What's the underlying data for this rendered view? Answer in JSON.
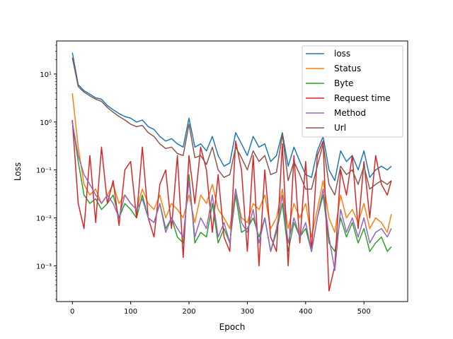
{
  "chart_data": {
    "type": "line",
    "title": "",
    "xlabel": "Epoch",
    "ylabel": "Loss",
    "xscale": "linear",
    "yscale": "log",
    "xlim": [
      -27,
      575
    ],
    "ylim": [
      0.00018,
      49
    ],
    "xticks": [
      0,
      100,
      200,
      300,
      400,
      500
    ],
    "xtick_labels": [
      "0",
      "100",
      "200",
      "300",
      "400",
      "500"
    ],
    "yticks": [
      0.001,
      0.01,
      0.1,
      1,
      10
    ],
    "ytick_labels": [
      "10⁻³",
      "10⁻²",
      "10⁻¹",
      "10⁰",
      "10¹"
    ],
    "grid": false,
    "legend_position": "upper right",
    "x": [
      0,
      10,
      20,
      30,
      40,
      50,
      60,
      70,
      80,
      90,
      100,
      110,
      120,
      130,
      140,
      150,
      160,
      170,
      180,
      190,
      200,
      210,
      220,
      230,
      240,
      250,
      260,
      270,
      280,
      290,
      300,
      310,
      320,
      330,
      340,
      350,
      360,
      370,
      380,
      390,
      400,
      410,
      420,
      430,
      440,
      450,
      460,
      470,
      480,
      490,
      500,
      510,
      520,
      530,
      540,
      547
    ],
    "series": [
      {
        "name": "loss",
        "color": "#1f77b4",
        "values": [
          28,
          6,
          4.5,
          3.8,
          3.2,
          3.0,
          2.2,
          1.8,
          1.5,
          1.3,
          1.2,
          1.0,
          1.1,
          0.8,
          0.7,
          0.5,
          0.4,
          0.45,
          0.35,
          0.3,
          1.2,
          0.3,
          0.35,
          0.25,
          0.5,
          0.2,
          0.12,
          0.14,
          0.6,
          0.35,
          0.2,
          0.5,
          0.3,
          0.35,
          0.15,
          0.2,
          0.6,
          0.12,
          0.3,
          0.15,
          0.08,
          0.07,
          0.25,
          0.5,
          0.1,
          0.06,
          0.25,
          0.15,
          0.2,
          0.1,
          0.25,
          0.07,
          0.1,
          0.12,
          0.1,
          0.12
        ]
      },
      {
        "name": "Status",
        "color": "#ff7f0e",
        "values": [
          4,
          0.3,
          0.05,
          0.03,
          0.04,
          0.02,
          0.03,
          0.05,
          0.02,
          0.03,
          0.02,
          0.015,
          0.04,
          0.02,
          0.015,
          0.03,
          0.01,
          0.02,
          0.015,
          0.01,
          0.03,
          0.008,
          0.03,
          0.02,
          0.05,
          0.015,
          0.01,
          0.006,
          0.04,
          0.01,
          0.008,
          0.02,
          0.015,
          0.03,
          0.006,
          0.01,
          0.04,
          0.006,
          0.02,
          0.01,
          0.02,
          0.004,
          0.015,
          0.06,
          0.01,
          0.005,
          0.03,
          0.01,
          0.015,
          0.008,
          0.02,
          0.006,
          0.01,
          0.008,
          0.005,
          0.012
        ]
      },
      {
        "name": "Byte",
        "color": "#2ca02c",
        "values": [
          1,
          0.15,
          0.03,
          0.02,
          0.025,
          0.015,
          0.02,
          0.03,
          0.01,
          0.02,
          0.015,
          0.01,
          0.03,
          0.01,
          0.008,
          0.02,
          0.006,
          0.01,
          0.004,
          0.003,
          0.08,
          0.003,
          0.005,
          0.004,
          0.02,
          0.003,
          0.006,
          0.003,
          0.03,
          0.005,
          0.006,
          0.01,
          0.004,
          0.01,
          0.002,
          0.005,
          0.02,
          0.002,
          0.008,
          0.004,
          0.006,
          0.002,
          0.01,
          0.03,
          0.003,
          0.002,
          0.01,
          0.004,
          0.008,
          0.003,
          0.006,
          0.002,
          0.003,
          0.004,
          0.002,
          0.0025
        ]
      },
      {
        "name": "Request time",
        "color": "#d62728",
        "values": [
          1.1,
          0.02,
          0.006,
          0.2,
          0.008,
          0.3,
          0.02,
          0.06,
          0.007,
          0.1,
          0.15,
          0.01,
          0.3,
          0.01,
          0.004,
          0.05,
          0.1,
          0.006,
          0.2,
          0.0015,
          0.2,
          0.02,
          0.3,
          0.1,
          0.005,
          0.08,
          0.004,
          0.002,
          0.4,
          0.1,
          0.002,
          0.2,
          0.001,
          0.1,
          0.004,
          0.002,
          0.35,
          0.001,
          0.2,
          0.003,
          0.15,
          0.002,
          0.2,
          0.4,
          0.0003,
          0.001,
          0.1,
          0.03,
          0.2,
          0.006,
          0.15,
          0.01,
          0.2,
          0.05,
          0.03,
          0.06
        ]
      },
      {
        "name": "Method",
        "color": "#9467bd",
        "values": [
          1,
          0.2,
          0.08,
          0.05,
          0.03,
          0.02,
          0.03,
          0.02,
          0.01,
          0.03,
          0.02,
          0.015,
          0.025,
          0.01,
          0.008,
          0.02,
          0.005,
          0.01,
          0.006,
          0.004,
          0.06,
          0.004,
          0.01,
          0.006,
          0.03,
          0.004,
          0.008,
          0.003,
          0.04,
          0.008,
          0.005,
          0.015,
          0.003,
          0.01,
          0.002,
          0.006,
          0.03,
          0.003,
          0.01,
          0.004,
          0.008,
          0.002,
          0.01,
          0.04,
          0.004,
          0.0008,
          0.015,
          0.005,
          0.01,
          0.004,
          0.01,
          0.003,
          0.005,
          0.006,
          0.004,
          0.006
        ]
      },
      {
        "name": "Url",
        "color": "#8c564b",
        "values": [
          22,
          5.5,
          4.2,
          3.5,
          3.0,
          2.7,
          2.0,
          1.6,
          1.3,
          1.1,
          0.9,
          0.8,
          0.85,
          0.6,
          0.5,
          0.35,
          0.28,
          0.3,
          0.22,
          0.2,
          0.9,
          0.18,
          0.2,
          0.13,
          0.3,
          0.1,
          0.07,
          0.08,
          0.3,
          0.18,
          0.1,
          0.25,
          0.15,
          0.2,
          0.08,
          0.09,
          0.55,
          0.06,
          0.15,
          0.08,
          0.04,
          0.04,
          0.12,
          0.35,
          0.05,
          0.03,
          0.12,
          0.08,
          0.1,
          0.05,
          0.12,
          0.04,
          0.05,
          0.06,
          0.05,
          0.06
        ]
      }
    ]
  }
}
